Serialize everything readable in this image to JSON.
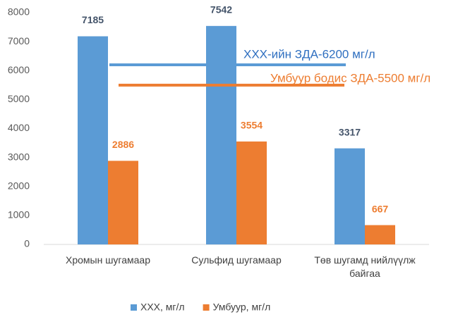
{
  "chart_data": {
    "type": "bar",
    "categories": [
      "Хромын шугамаар",
      "Сульфид шугамаар",
      "Төв шугамд нийлүүлж байгаа"
    ],
    "series": [
      {
        "name": "ХХХ, мг/л",
        "color": "#5b9bd5",
        "label_color": "#44546a",
        "values": [
          7185,
          7542,
          3317
        ]
      },
      {
        "name": "Умбуур, мг/л",
        "color": "#ed7d31",
        "label_color": "#ed7d31",
        "values": [
          2886,
          3554,
          667
        ]
      }
    ],
    "reference_lines": [
      {
        "value": 6200,
        "label": "ХХХ-ийн ЗДА-6200 мг/л",
        "color": "#5b9bd5",
        "text_color": "#2f6fc0"
      },
      {
        "value": 5500,
        "label": "Умбуур бодис ЗДА-5500 мг/л",
        "color": "#ed7d31",
        "text_color": "#ed7d31"
      }
    ],
    "ylim": [
      0,
      8000
    ],
    "yticks": [
      0,
      1000,
      2000,
      3000,
      4000,
      5000,
      6000,
      7000,
      8000
    ],
    "grid": false,
    "legend": "bottom"
  }
}
